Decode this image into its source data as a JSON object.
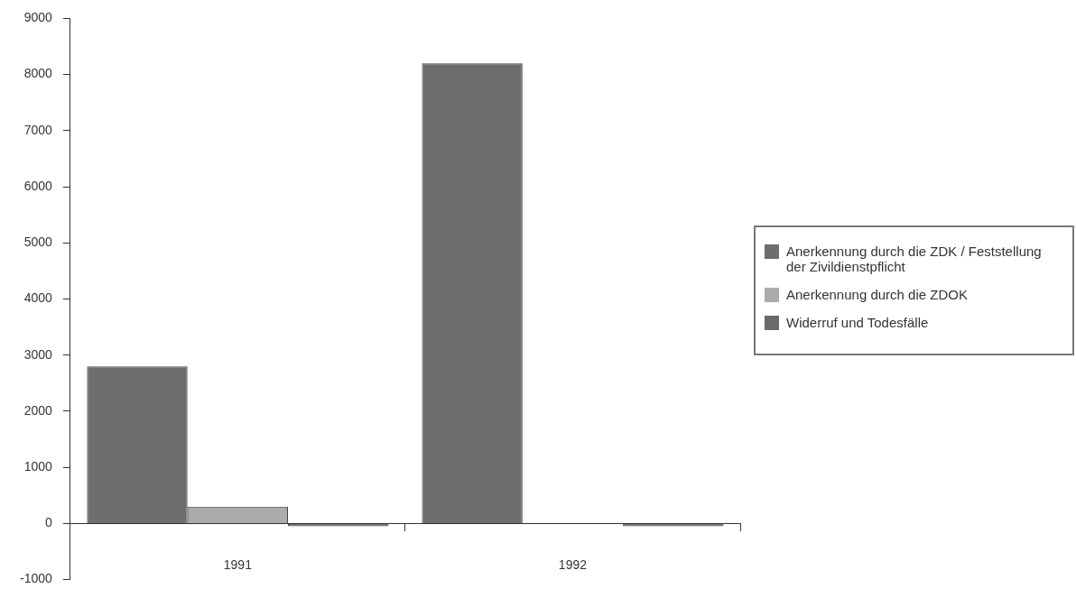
{
  "chart_data": {
    "type": "bar",
    "categories": [
      "1991",
      "1992"
    ],
    "series": [
      {
        "name": "Anerkennung durch die ZDK / Feststellung der Zivildienstpflicht",
        "color": "#6e6e6e",
        "values": [
          2800,
          8200
        ]
      },
      {
        "name": "Anerkennung durch die ZDOK",
        "color": "#ababab",
        "values": [
          300,
          0
        ]
      },
      {
        "name": "Widerruf und Todesfälle",
        "color": "#6a6a6a",
        "values": [
          -50,
          -50
        ]
      }
    ],
    "ylim": [
      -1000,
      9000
    ],
    "yticks": [
      -1000,
      0,
      1000,
      2000,
      3000,
      4000,
      5000,
      6000,
      7000,
      8000,
      9000
    ],
    "legend": "right"
  }
}
